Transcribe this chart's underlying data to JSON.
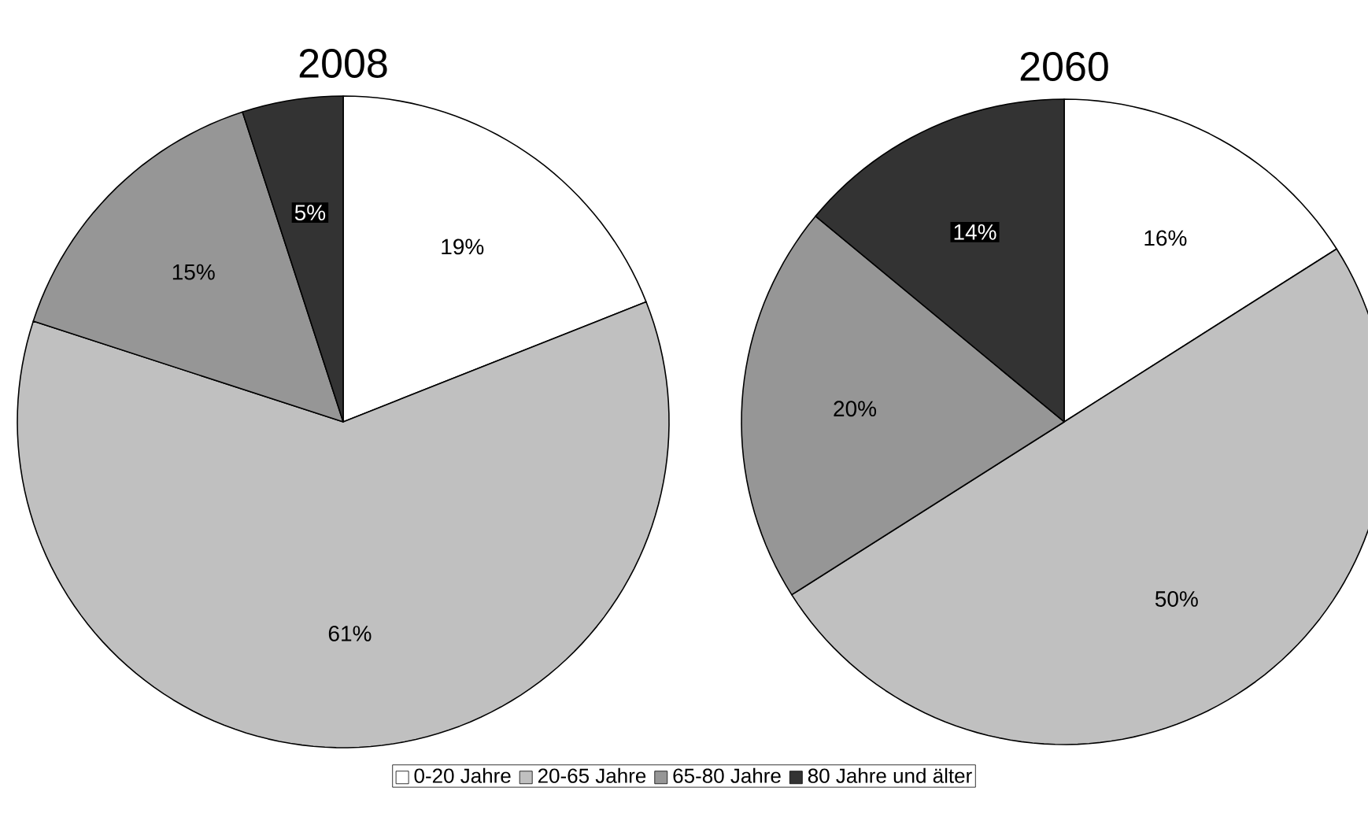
{
  "chart_data": [
    {
      "type": "pie",
      "title": "2008",
      "categories": [
        "0-20 Jahre",
        "20-65 Jahre",
        "65-80 Jahre",
        "80 Jahre und älter"
      ],
      "values": [
        19,
        61,
        15,
        5
      ],
      "value_labels": [
        "19%",
        "61%",
        "15%",
        "5%"
      ],
      "colors": [
        "#ffffff",
        "#c0c0c0",
        "#969696",
        "#333333"
      ],
      "legend": "bottom"
    },
    {
      "type": "pie",
      "title": "2060",
      "values": [
        16,
        50,
        20,
        14
      ],
      "value_labels": [
        "16%",
        "50%",
        "20%",
        "14%"
      ],
      "colors": [
        "#ffffff",
        "#c0c0c0",
        "#969696",
        "#333333"
      ]
    }
  ]
}
